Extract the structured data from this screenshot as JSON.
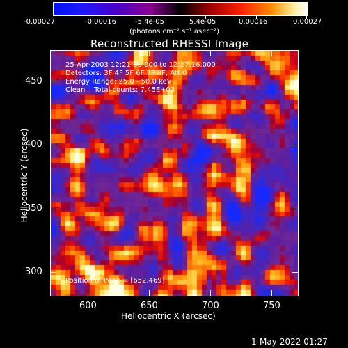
{
  "colorbar": {
    "ticks": [
      "-0.00027",
      "-0.00016",
      "-5.4e-05",
      "5.4e-05",
      "0.00016",
      "0.00027"
    ],
    "units": "(photons cm⁻² s⁻¹ asec⁻²)"
  },
  "plot": {
    "title": "Reconstructed RHESSI Image",
    "annotations": {
      "time": "25-Apr-2003 12:21:00.000 to 12:27:16.000",
      "detectors": "Detectors: 3F 4F 5F 6F 7F 8F, Att 0",
      "energy": "Energy Range: 25.0 - 50.0 keV",
      "clean": "Clean    Total counts: 7.45E+03",
      "peak": "Position of Peak = [652,469]"
    },
    "y_ticks": [
      "450",
      "400",
      "350",
      "300"
    ],
    "x_ticks": [
      "600",
      "650",
      "700",
      "750"
    ],
    "ylabel": "Heliocentric Y (arcsec)",
    "xlabel": "Heliocentric X (arcsec)"
  },
  "timestamp": "1-May-2022 01:27"
}
